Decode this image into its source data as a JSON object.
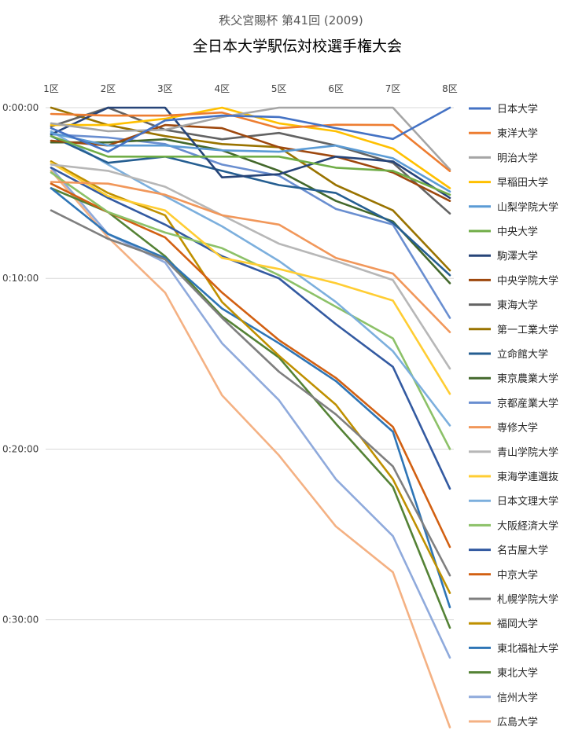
{
  "chart_data": {
    "type": "line",
    "subtitle": "秩父宮賜杯 第41回 (2009)",
    "title": "全日本大学駅伝対校選手権大会",
    "categories": [
      "1区",
      "2区",
      "3区",
      "4区",
      "5区",
      "6区",
      "7区",
      "8区"
    ],
    "y_axis": {
      "unit": "seconds behind leader",
      "ticks": [
        {
          "seconds": 0,
          "label": "0:00:00"
        },
        {
          "seconds": 600,
          "label": "0:10:00"
        },
        {
          "seconds": 1200,
          "label": "0:20:00"
        },
        {
          "seconds": 1800,
          "label": "0:30:00"
        }
      ],
      "reversed": true,
      "ylim": [
        0,
        2160
      ]
    },
    "grid": true,
    "legend_position": "right",
    "series": [
      {
        "name": "日本大学",
        "color": "#4472C4",
        "values": [
          72,
          155,
          45,
          28,
          33,
          72,
          110,
          0
        ]
      },
      {
        "name": "東洋大学",
        "color": "#ED7D31",
        "values": [
          22,
          28,
          28,
          17,
          72,
          60,
          61,
          223
        ]
      },
      {
        "name": "明治大学",
        "color": "#A5A5A5",
        "values": [
          55,
          83,
          78,
          33,
          0,
          0,
          0,
          217
        ]
      },
      {
        "name": "早稲田大学",
        "color": "#FFC000",
        "values": [
          61,
          61,
          39,
          0,
          55,
          83,
          144,
          283
        ]
      },
      {
        "name": "山梨学院大学",
        "color": "#5B9BD5",
        "values": [
          89,
          133,
          133,
          150,
          155,
          133,
          178,
          295
        ]
      },
      {
        "name": "中央大学",
        "color": "#70AD47",
        "values": [
          100,
          172,
          172,
          172,
          172,
          211,
          222,
          306
        ]
      },
      {
        "name": "駒澤大学",
        "color": "#264478",
        "values": [
          94,
          0,
          0,
          245,
          234,
          172,
          189,
          317
        ]
      },
      {
        "name": "中央学院大学",
        "color": "#9E480E",
        "values": [
          116,
          133,
          61,
          72,
          139,
          172,
          228,
          328
        ]
      },
      {
        "name": "東海大学",
        "color": "#636363",
        "values": [
          66,
          0,
          78,
          111,
          89,
          133,
          194,
          372
        ]
      },
      {
        "name": "第一工業大学",
        "color": "#997300",
        "values": [
          0,
          61,
          100,
          128,
          139,
          272,
          361,
          572
        ]
      },
      {
        "name": "立命館大学",
        "color": "#255E91",
        "values": [
          100,
          194,
          172,
          222,
          272,
          300,
          405,
          589
        ]
      },
      {
        "name": "東京農業大学",
        "color": "#43682B",
        "values": [
          122,
          122,
          111,
          150,
          222,
          328,
          400,
          617
        ]
      },
      {
        "name": "京都産業大学",
        "color": "#698ED0",
        "values": [
          94,
          105,
          128,
          200,
          239,
          356,
          411,
          739
        ]
      },
      {
        "name": "専修大学",
        "color": "#F1975A",
        "values": [
          261,
          267,
          306,
          378,
          411,
          528,
          583,
          789
        ]
      },
      {
        "name": "青山学院大学",
        "color": "#B7B7B7",
        "values": [
          200,
          222,
          278,
          378,
          478,
          539,
          606,
          917
        ]
      },
      {
        "name": "東海学連選抜",
        "color": "#FFCD33",
        "values": [
          194,
          311,
          361,
          528,
          567,
          617,
          678,
          1006
        ]
      },
      {
        "name": "日本文理大学",
        "color": "#7CAFDD",
        "values": [
          83,
          200,
          311,
          417,
          539,
          683,
          856,
          1117
        ]
      },
      {
        "name": "大阪経済大学",
        "color": "#8CC168",
        "values": [
          228,
          367,
          439,
          494,
          589,
          700,
          811,
          1200
        ]
      },
      {
        "name": "名古屋大学",
        "color": "#335AA1",
        "values": [
          211,
          317,
          411,
          522,
          600,
          761,
          911,
          1339
        ]
      },
      {
        "name": "中京大学",
        "color": "#D26012",
        "values": [
          267,
          367,
          456,
          650,
          817,
          950,
          1122,
          1544
        ]
      },
      {
        "name": "札幌学院大学",
        "color": "#7F7F7F",
        "values": [
          361,
          461,
          533,
          739,
          928,
          1078,
          1261,
          1644
        ]
      },
      {
        "name": "福岡大学",
        "color": "#BF9000",
        "values": [
          189,
          300,
          378,
          683,
          872,
          1044,
          1306,
          1706
        ]
      },
      {
        "name": "東北福祉大学",
        "color": "#2E75B6",
        "values": [
          283,
          444,
          528,
          706,
          828,
          961,
          1139,
          1756
        ]
      },
      {
        "name": "東北大学",
        "color": "#548235",
        "values": [
          283,
          367,
          522,
          733,
          878,
          1111,
          1333,
          1828
        ]
      },
      {
        "name": "信州大学",
        "color": "#8FAADC",
        "values": [
          211,
          444,
          544,
          828,
          1028,
          1306,
          1506,
          1933
        ]
      },
      {
        "name": "広島大学",
        "color": "#F4B183",
        "values": [
          222,
          456,
          650,
          1011,
          1222,
          1472,
          1633,
          2178
        ]
      }
    ]
  }
}
